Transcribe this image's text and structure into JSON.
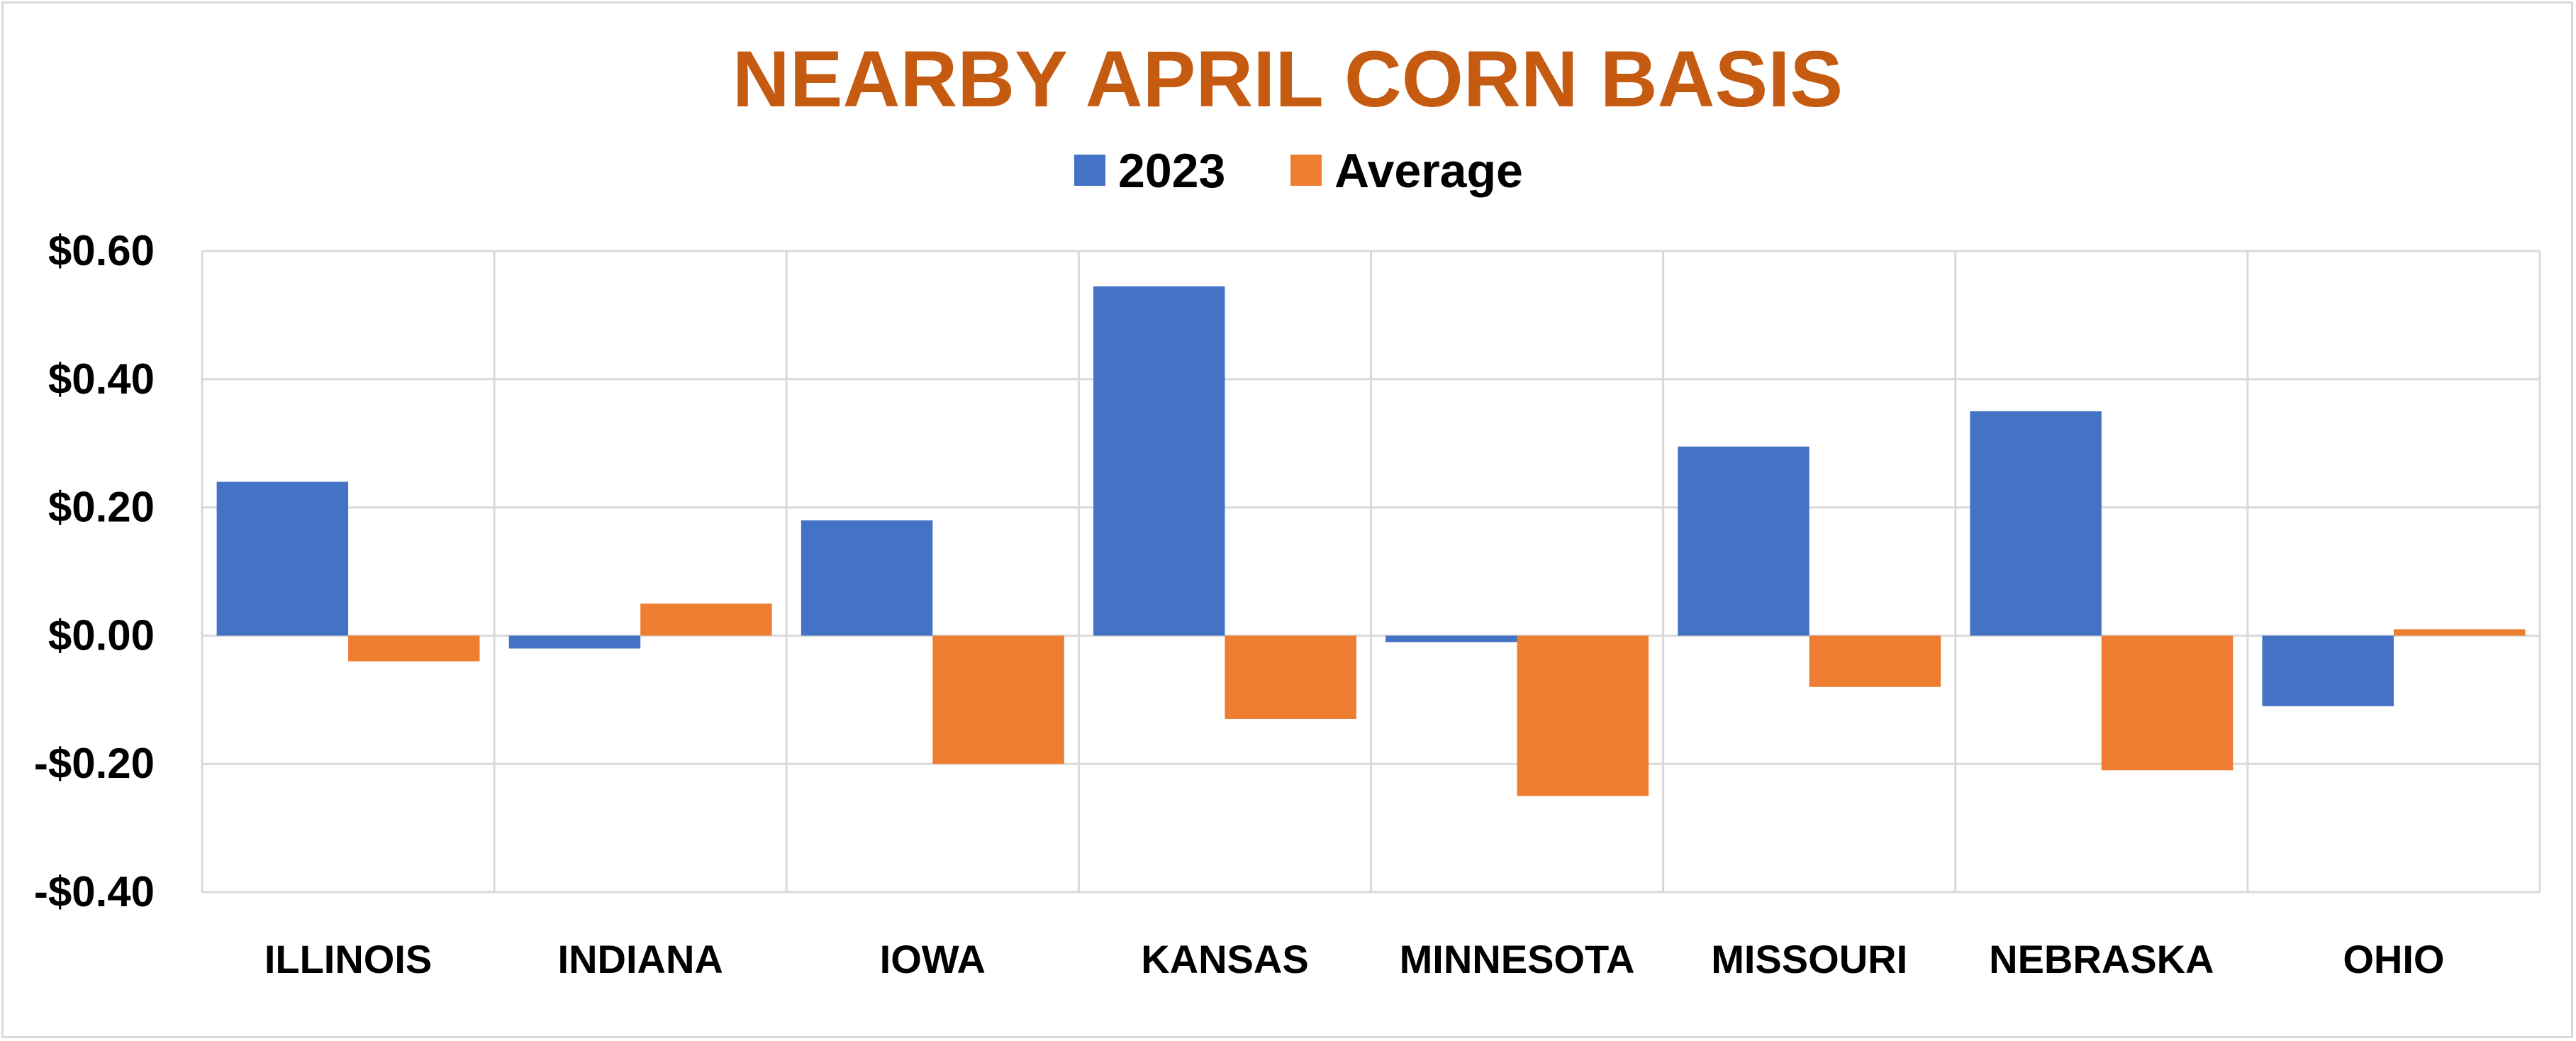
{
  "chart_data": {
    "type": "bar",
    "title": "NEARBY APRIL CORN BASIS",
    "title_color": "#C55A11",
    "categories": [
      "ILLINOIS",
      "INDIANA",
      "IOWA",
      "KANSAS",
      "MINNESOTA",
      "MISSOURI",
      "NEBRASKA",
      "OHIO"
    ],
    "series": [
      {
        "name": "2023",
        "color": "#4472C4",
        "values": [
          0.24,
          -0.02,
          0.18,
          0.545,
          -0.01,
          0.295,
          0.35,
          -0.11
        ]
      },
      {
        "name": "Average",
        "color": "#ED7D31",
        "values": [
          -0.04,
          0.05,
          -0.2,
          -0.13,
          -0.25,
          -0.08,
          -0.21,
          0.01
        ]
      }
    ],
    "ylim": [
      -0.4,
      0.6
    ],
    "yticks": [
      0.6,
      0.4,
      0.2,
      0.0,
      -0.2,
      -0.4
    ],
    "ytick_labels": [
      "$0.60",
      "$0.40",
      "$0.20",
      "$0.00",
      "-$0.20",
      "-$0.40"
    ],
    "legend_position": "top",
    "grid": true,
    "xlabel": "",
    "ylabel": ""
  }
}
